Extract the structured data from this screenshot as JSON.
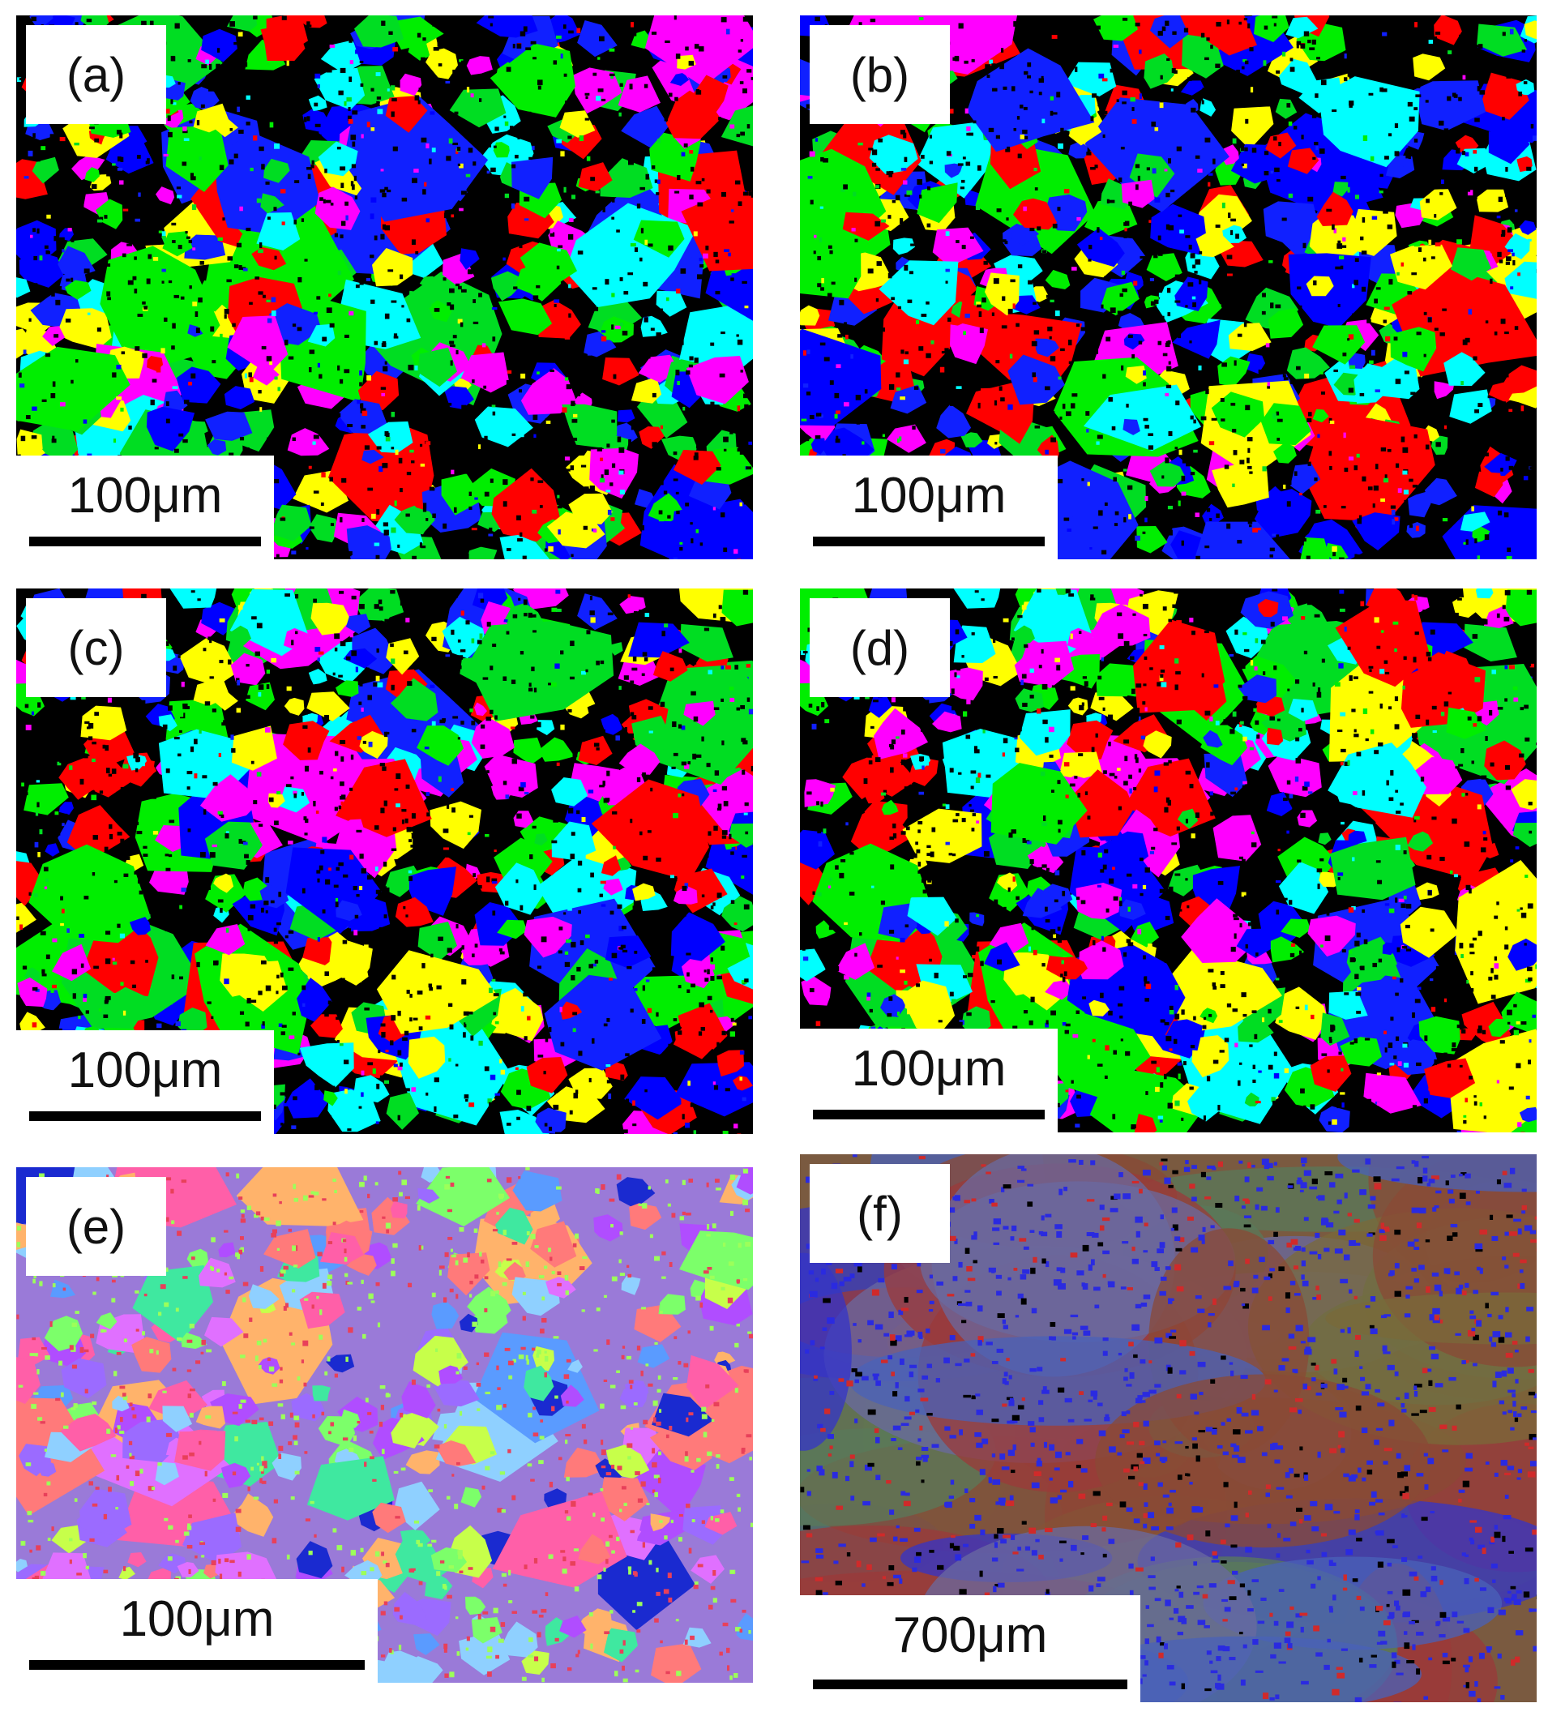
{
  "panels": [
    {
      "label": "(a)",
      "scale_bar": "100μm"
    },
    {
      "label": "(b)",
      "scale_bar": "100μm"
    },
    {
      "label": "(c)",
      "scale_bar": "100μm"
    },
    {
      "label": "(d)",
      "scale_bar": "100μm"
    },
    {
      "label": "(e)",
      "scale_bar": "100μm"
    },
    {
      "label": "(f)",
      "scale_bar": "700μm"
    }
  ]
}
